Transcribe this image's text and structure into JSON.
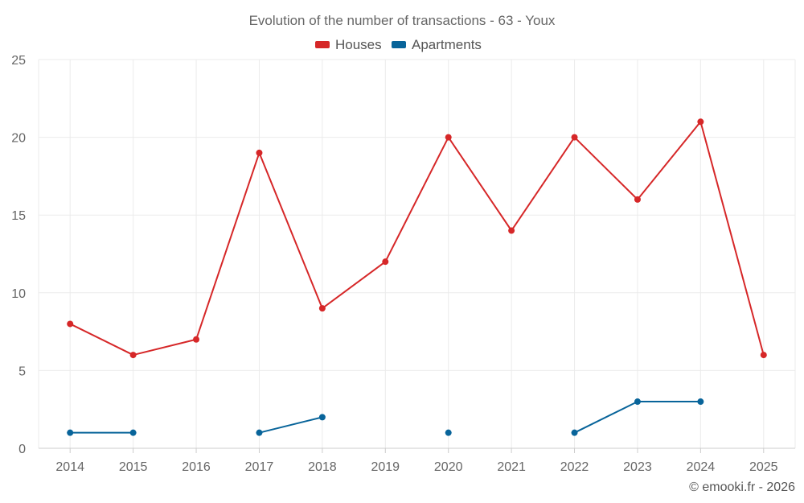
{
  "chart_data": {
    "type": "line",
    "title": "Evolution of the number of transactions - 63 - Youx",
    "xlabel": "",
    "ylabel": "",
    "x": [
      "2014",
      "2015",
      "2016",
      "2017",
      "2018",
      "2019",
      "2020",
      "2021",
      "2022",
      "2023",
      "2024",
      "2025"
    ],
    "ylim": [
      0,
      25
    ],
    "yticks": [
      0,
      5,
      10,
      15,
      20,
      25
    ],
    "grid": true,
    "legend_position": "top-center",
    "series": [
      {
        "name": "Houses",
        "color": "#d62728",
        "values": [
          8,
          6,
          7,
          19,
          9,
          12,
          20,
          14,
          20,
          16,
          21,
          6
        ]
      },
      {
        "name": "Apartments",
        "color": "#08649a",
        "values": [
          1,
          1,
          null,
          1,
          2,
          null,
          1,
          null,
          1,
          3,
          3,
          null
        ]
      }
    ]
  },
  "credit": "© emooki.fr - 2026"
}
